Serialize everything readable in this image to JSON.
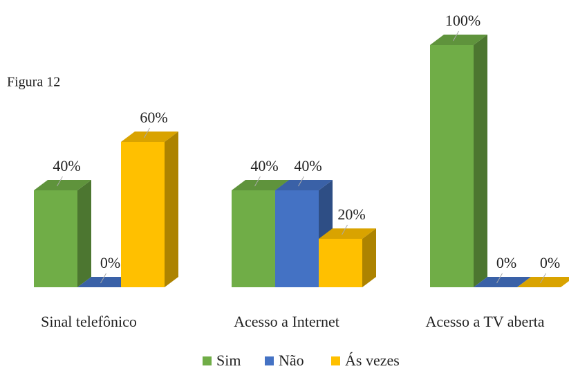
{
  "chart_data": {
    "type": "bar3d",
    "annotation": "Figura  12",
    "categories": [
      "Sinal telefônico",
      "Acesso a Internet",
      "Acesso a TV aberta"
    ],
    "series": [
      {
        "name": "Sim",
        "color": "#70ad47",
        "values": [
          40,
          40,
          100
        ],
        "value_labels": [
          "40%",
          "40%",
          "100%"
        ]
      },
      {
        "name": "Não",
        "color": "#4472c4",
        "values": [
          0,
          40,
          0
        ],
        "value_labels": [
          "0%",
          "40%",
          "0%"
        ]
      },
      {
        "name": "Ás vezes",
        "color": "#ffc000",
        "values": [
          60,
          20,
          0
        ],
        "value_labels": [
          "60%",
          "20%",
          "0%"
        ]
      }
    ],
    "legend": "bottom"
  }
}
